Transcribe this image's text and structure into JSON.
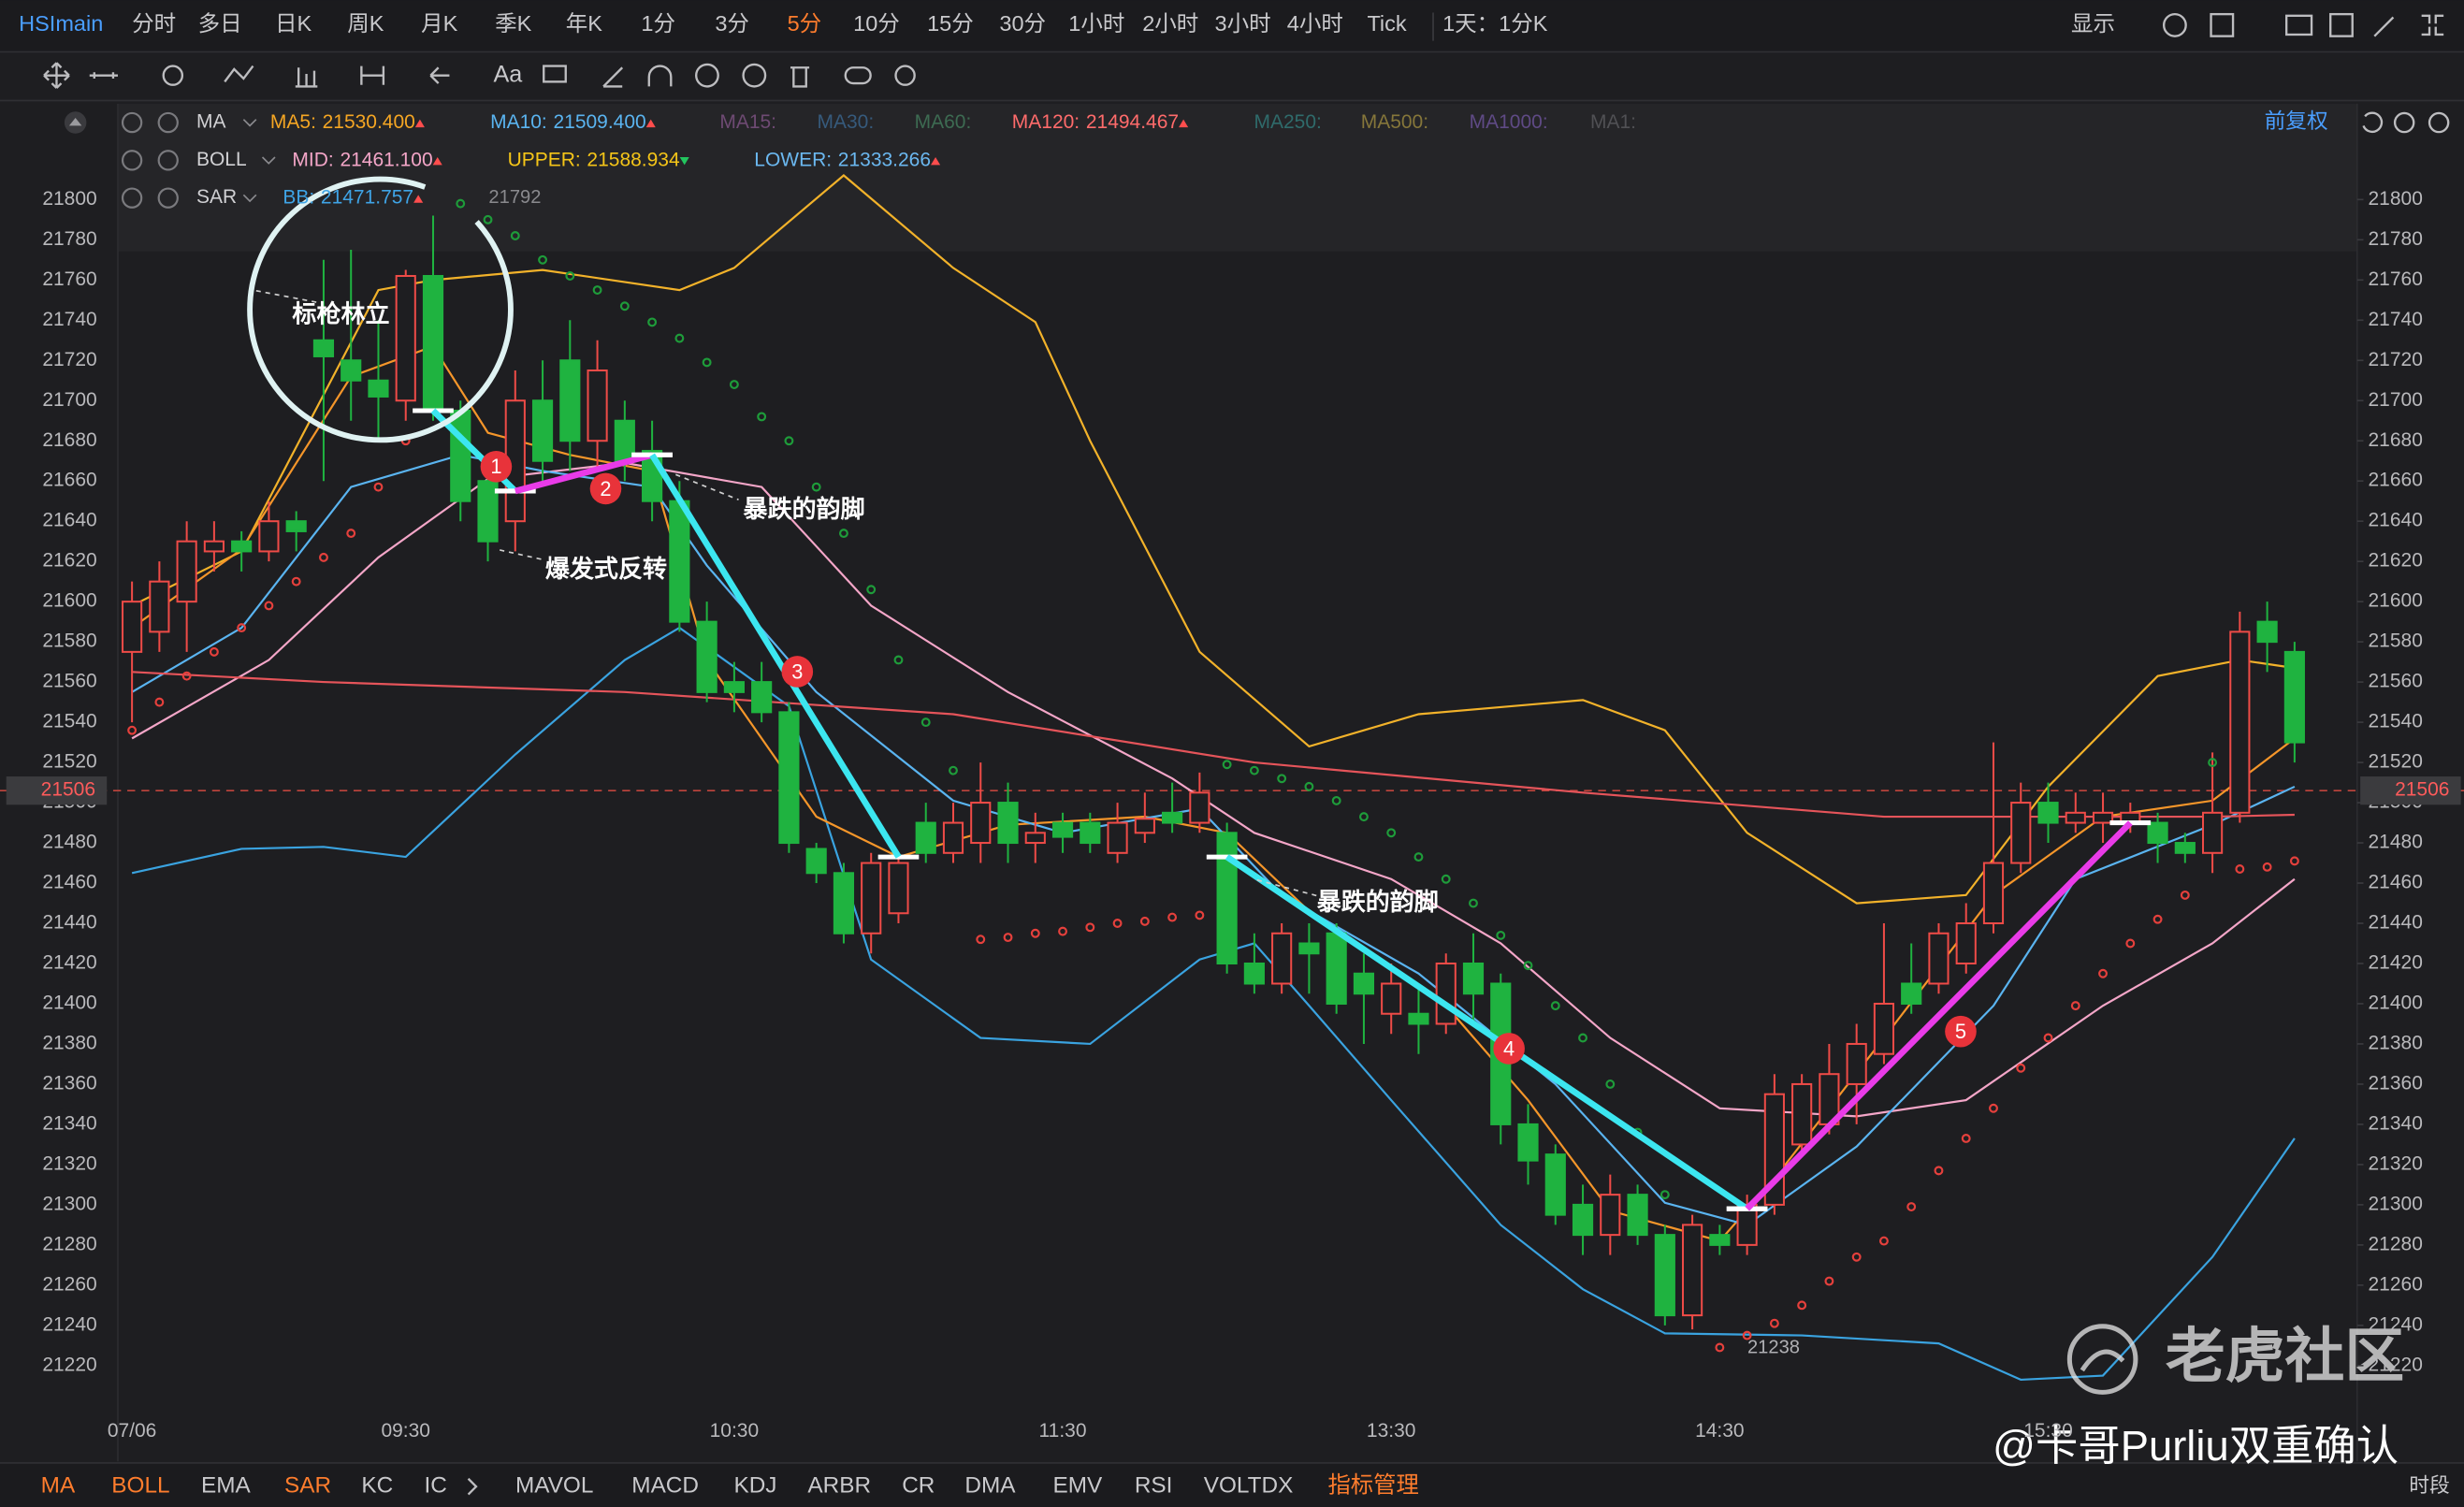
{
  "toolbar": {
    "symbol": "HSImain",
    "periods": [
      {
        "label": "分时"
      },
      {
        "label": "多日"
      },
      {
        "label": "日K"
      },
      {
        "label": "周K"
      },
      {
        "label": "月K"
      },
      {
        "label": "季K"
      },
      {
        "label": "年K"
      },
      {
        "label": "1分"
      },
      {
        "label": "3分"
      },
      {
        "label": "5分",
        "active": true
      },
      {
        "label": "10分"
      },
      {
        "label": "15分"
      },
      {
        "label": "30分"
      },
      {
        "label": "1小时"
      },
      {
        "label": "2小时"
      },
      {
        "label": "3小时"
      },
      {
        "label": "4小时"
      },
      {
        "label": "Tick"
      }
    ],
    "range": "1天：1分K",
    "display": "显示",
    "text_tool": "Aa"
  },
  "indicator_panel": {
    "adjust": "前复权",
    "rows": [
      {
        "name": "MA",
        "items": [
          {
            "label": "MA5:",
            "value": "21530.400",
            "color": "#f5a623",
            "arrow": "up"
          },
          {
            "label": "MA10:",
            "value": "21509.400",
            "color": "#5ab4f0",
            "arrow": "up"
          },
          {
            "label": "MA15:",
            "color": "#6e4a73"
          },
          {
            "label": "MA30:",
            "color": "#365a7c"
          },
          {
            "label": "MA60:",
            "color": "#3d6b52"
          },
          {
            "label": "MA120:",
            "value": "21494.467",
            "color": "#ff6b6b",
            "arrow": "up"
          },
          {
            "label": "MA250:",
            "color": "#2f6b6b"
          },
          {
            "label": "MA500:",
            "color": "#85763a"
          },
          {
            "label": "MA1000:",
            "color": "#5f4a85"
          },
          {
            "label": "MA1:",
            "color": "#505054"
          }
        ]
      },
      {
        "name": "BOLL",
        "items": [
          {
            "label": "MID:",
            "value": "21461.100",
            "color": "#f4a6c8",
            "arrow": "up"
          },
          {
            "label": "UPPER:",
            "value": "21588.934",
            "color": "#f5c518",
            "arrow": "down"
          },
          {
            "label": "LOWER:",
            "value": "21333.266",
            "color": "#6bb8f0",
            "arrow": "up"
          }
        ]
      },
      {
        "name": "SAR",
        "items": [
          {
            "label": "BB:",
            "value": "21471.757",
            "color": "#3fa4e6",
            "arrow": "up"
          }
        ]
      }
    ]
  },
  "chart_data": {
    "type": "candlestick",
    "categories": [
      "07/06",
      null,
      null,
      null,
      null,
      null,
      null,
      null,
      null,
      null,
      "09:30",
      null,
      null,
      null,
      null,
      null,
      null,
      null,
      null,
      null,
      null,
      null,
      "10:30",
      null,
      null,
      null,
      null,
      null,
      null,
      null,
      null,
      null,
      null,
      null,
      "11:30",
      null,
      null,
      null,
      null,
      null,
      null,
      null,
      null,
      null,
      null,
      null,
      "13:30",
      null,
      null,
      null,
      null,
      null,
      null,
      null,
      null,
      null,
      null,
      null,
      "14:30",
      null,
      null,
      null,
      null,
      null,
      null,
      null,
      null,
      null,
      null,
      null,
      "15:30",
      null,
      null,
      null,
      null,
      null,
      null,
      null,
      null,
      null
    ],
    "open": [
      21575,
      21585,
      21600,
      21625,
      21630,
      21625,
      21640,
      21730,
      21720,
      21710,
      21700,
      21762,
      21695,
      21660,
      21640,
      21700,
      21720,
      21680,
      21690,
      21675,
      21650,
      21590,
      21560,
      21560,
      21545,
      21477,
      21465,
      21435,
      21445,
      21490,
      21475,
      21480,
      21500,
      21480,
      21490,
      21490,
      21475,
      21485,
      21495,
      21490,
      21485,
      21420,
      21410,
      21430,
      21435,
      21415,
      21395,
      21395,
      21390,
      21420,
      21410,
      21340,
      21325,
      21300,
      21285,
      21305,
      21285,
      21245,
      21285,
      21280,
      21300,
      21330,
      21340,
      21360,
      21375,
      21410,
      21410,
      21420,
      21440,
      21470,
      21500,
      21490,
      21490,
      21490,
      21490,
      21480,
      21475,
      21495,
      21590,
      21575
    ],
    "high": [
      21610,
      21620,
      21640,
      21640,
      21635,
      21650,
      21645,
      21770,
      21775,
      21740,
      21765,
      21792,
      21700,
      21670,
      21715,
      21720,
      21740,
      21730,
      21700,
      21690,
      21660,
      21600,
      21570,
      21570,
      21550,
      21480,
      21470,
      21475,
      21475,
      21500,
      21500,
      21520,
      21510,
      21495,
      21495,
      21495,
      21500,
      21505,
      21510,
      21515,
      21490,
      21435,
      21440,
      21440,
      21440,
      21425,
      21420,
      21410,
      21425,
      21435,
      21415,
      21350,
      21330,
      21310,
      21315,
      21310,
      21290,
      21295,
      21290,
      21305,
      21365,
      21365,
      21380,
      21390,
      21440,
      21430,
      21440,
      21450,
      21530,
      21510,
      21510,
      21505,
      21505,
      21500,
      21495,
      21485,
      21525,
      21595,
      21600,
      21580
    ],
    "low": [
      21540,
      21575,
      21575,
      21615,
      21615,
      21620,
      21625,
      21660,
      21690,
      21680,
      21690,
      21690,
      21640,
      21620,
      21625,
      21660,
      21665,
      21665,
      21660,
      21640,
      21585,
      21550,
      21545,
      21540,
      21475,
      21460,
      21430,
      21425,
      21440,
      21470,
      21470,
      21470,
      21470,
      21470,
      21475,
      21475,
      21470,
      21480,
      21485,
      21485,
      21415,
      21405,
      21405,
      21405,
      21395,
      21380,
      21385,
      21375,
      21385,
      21390,
      21330,
      21310,
      21290,
      21275,
      21275,
      21280,
      21240,
      21238,
      21275,
      21275,
      21295,
      21325,
      21335,
      21340,
      21370,
      21395,
      21405,
      21415,
      21435,
      21465,
      21480,
      21485,
      21480,
      21485,
      21470,
      21470,
      21465,
      21490,
      21565,
      21520
    ],
    "close": [
      21600,
      21610,
      21630,
      21630,
      21625,
      21640,
      21635,
      21722,
      21710,
      21702,
      21762,
      21695,
      21650,
      21630,
      21700,
      21670,
      21680,
      21715,
      21670,
      21650,
      21590,
      21555,
      21555,
      21545,
      21480,
      21465,
      21435,
      21470,
      21470,
      21475,
      21490,
      21500,
      21480,
      21485,
      21483,
      21480,
      21490,
      21492,
      21490,
      21505,
      21420,
      21410,
      21435,
      21425,
      21400,
      21405,
      21410,
      21390,
      21420,
      21405,
      21340,
      21322,
      21295,
      21285,
      21305,
      21285,
      21245,
      21290,
      21280,
      21300,
      21355,
      21360,
      21365,
      21380,
      21400,
      21400,
      21435,
      21440,
      21470,
      21500,
      21490,
      21495,
      21495,
      21495,
      21480,
      21475,
      21495,
      21585,
      21580,
      21530
    ],
    "up_color": "#ee4b47",
    "down_color": "#1fb340",
    "ylim": [
      21200,
      21820
    ],
    "yticks": [
      21220,
      21240,
      21260,
      21280,
      21300,
      21320,
      21340,
      21360,
      21380,
      21400,
      21420,
      21440,
      21460,
      21480,
      21500,
      21520,
      21540,
      21560,
      21580,
      21600,
      21620,
      21640,
      21660,
      21680,
      21700,
      21720,
      21740,
      21760,
      21780,
      21800
    ],
    "grid": false,
    "current_price": 21506,
    "overlays": [
      {
        "color": "#f2b22a",
        "x": [
          0,
          4,
          9,
          11,
          15,
          20,
          22,
          26,
          30,
          33,
          35,
          39,
          43,
          47,
          53,
          56,
          59,
          63,
          67,
          70,
          74,
          77,
          79
        ],
        "values": [
          21598,
          21625,
          21755,
          21760,
          21765,
          21755,
          21766,
          21812,
          21766,
          21739,
          21680,
          21575,
          21528,
          21544,
          21551,
          21536,
          21485,
          21450,
          21454,
          21508,
          21563,
          21571,
          21567
        ]
      },
      {
        "color": "#3aa3e0",
        "x": [
          0,
          4,
          7,
          10,
          14,
          18,
          20,
          24,
          27,
          31,
          35,
          39,
          41,
          43,
          46,
          50,
          53,
          56,
          61,
          66,
          69,
          72,
          76,
          79
        ],
        "values": [
          21465,
          21477,
          21478,
          21473,
          21524,
          21571,
          21587,
          21548,
          21422,
          21383,
          21380,
          21422,
          21430,
          21399,
          21352,
          21290,
          21258,
          21236,
          21235,
          21231,
          21213,
          21215,
          21274,
          21333
        ]
      },
      {
        "color": "#f4a6c8",
        "x": [
          0,
          5,
          9,
          13,
          18,
          23,
          27,
          32,
          38,
          41,
          46,
          50,
          54,
          58,
          63,
          67,
          72,
          76,
          79
        ],
        "values": [
          21532,
          21571,
          21622,
          21661,
          21669,
          21657,
          21598,
          21555,
          21512,
          21485,
          21462,
          21430,
          21383,
          21348,
          21344,
          21352,
          21399,
          21430,
          21462
        ]
      },
      {
        "color": "#f5962a",
        "x": [
          0,
          4,
          8,
          11,
          13,
          16,
          19,
          21,
          25,
          28,
          32,
          37,
          40,
          43,
          48,
          51,
          54,
          58,
          60,
          64,
          68,
          72,
          76,
          79
        ],
        "values": [
          21587,
          21626,
          21712,
          21727,
          21684,
          21673,
          21665,
          21571,
          21493,
          21473,
          21489,
          21493,
          21485,
          21446,
          21399,
          21352,
          21297,
          21282,
          21313,
          21383,
          21454,
          21493,
          21501,
          21532
        ]
      },
      {
        "color": "#5ab4f0",
        "x": [
          0,
          4,
          8,
          12,
          15,
          19,
          21,
          25,
          30,
          34,
          39,
          42,
          47,
          52,
          56,
          59,
          63,
          68,
          71,
          76,
          79
        ],
        "values": [
          21555,
          21587,
          21657,
          21673,
          21665,
          21657,
          21618,
          21555,
          21501,
          21485,
          21497,
          21454,
          21415,
          21360,
          21301,
          21290,
          21329,
          21399,
          21462,
          21489,
          21508
        ]
      },
      {
        "color": "#e5545a",
        "x": [
          0,
          7,
          18,
          30,
          41,
          53,
          64,
          76,
          79
        ],
        "values": [
          21565,
          21560,
          21555,
          21544,
          21520,
          21505,
          21493,
          21493,
          21494
        ]
      }
    ],
    "sar": {
      "up_color": "#e5403c",
      "down_color": "#1e9c3a",
      "x": [
        0,
        1,
        2,
        3,
        4,
        5,
        6,
        7,
        8,
        9,
        10,
        12,
        13,
        14,
        15,
        16,
        17,
        18,
        19,
        20,
        21,
        22,
        23,
        24,
        25,
        26,
        27,
        28,
        29,
        30,
        31,
        32,
        33,
        34,
        35,
        36,
        37,
        38,
        39,
        40,
        41,
        42,
        43,
        44,
        45,
        46,
        47,
        48,
        49,
        50,
        51,
        52,
        53,
        54,
        55,
        56,
        58,
        59,
        60,
        61,
        62,
        63,
        64,
        65,
        66,
        67,
        68,
        69,
        70,
        71,
        72,
        73,
        74,
        75,
        76,
        77,
        78,
        79
      ],
      "values": [
        21536,
        21550,
        21563,
        21575,
        21587,
        21598,
        21610,
        21622,
        21634,
        21657,
        21680,
        21798,
        21790,
        21782,
        21770,
        21762,
        21755,
        21747,
        21739,
        21731,
        21719,
        21708,
        21692,
        21680,
        21657,
        21634,
        21606,
        21571,
        21540,
        21516,
        21432,
        21433,
        21435,
        21436,
        21438,
        21440,
        21441,
        21443,
        21444,
        21519,
        21516,
        21512,
        21508,
        21501,
        21493,
        21485,
        21473,
        21462,
        21450,
        21434,
        21419,
        21399,
        21383,
        21360,
        21336,
        21305,
        21229,
        21235,
        21241,
        21250,
        21262,
        21274,
        21282,
        21299,
        21317,
        21333,
        21348,
        21368,
        21383,
        21399,
        21415,
        21430,
        21442,
        21454,
        21520,
        21467,
        21468,
        21471
      ]
    },
    "trend_lines": [
      {
        "color": "#3ce6f0",
        "x": [
          11,
          14
        ],
        "values": [
          21695,
          21655
        ],
        "label": "1"
      },
      {
        "color": "#e93be8",
        "x": [
          14,
          19
        ],
        "values": [
          21655,
          21673
        ],
        "label": "2"
      },
      {
        "color": "#3ce6f0",
        "x": [
          19,
          28
        ],
        "values": [
          21673,
          21473
        ],
        "label": "3"
      },
      {
        "color": "#3ce6f0",
        "x": [
          40,
          59
        ],
        "values": [
          21473,
          21298
        ],
        "label": "4"
      },
      {
        "color": "#e93be8",
        "x": [
          59,
          73
        ],
        "values": [
          21298,
          21490
        ],
        "label": "5"
      }
    ]
  },
  "annotations": [
    "标枪林立",
    "爆发式反转",
    "暴跌的韵脚",
    "暴跌的韵脚"
  ],
  "bottom_bar": {
    "tabs": [
      {
        "label": "MA",
        "color": "#ff7d2d"
      },
      {
        "label": "BOLL",
        "color": "#ff7d2d"
      },
      {
        "label": "EMA"
      },
      {
        "label": "SAR",
        "color": "#ff7d2d"
      },
      {
        "label": "KC"
      },
      {
        "label": "IC"
      },
      {
        "label": "MAVOL"
      },
      {
        "label": "MACD"
      },
      {
        "label": "KDJ"
      },
      {
        "label": "ARBR"
      },
      {
        "label": "CR"
      },
      {
        "label": "DMA"
      },
      {
        "label": "EMV"
      },
      {
        "label": "RSI"
      },
      {
        "label": "VOLTDX"
      },
      {
        "label": "指标管理",
        "color": "#ff7d2d"
      }
    ],
    "period": "时段"
  },
  "watermark": {
    "brand": "老虎社区",
    "credit": "@卡哥Purliu双重确认"
  }
}
